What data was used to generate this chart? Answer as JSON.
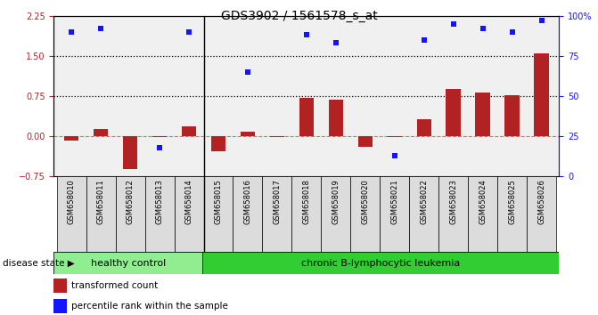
{
  "title": "GDS3902 / 1561578_s_at",
  "samples": [
    "GSM658010",
    "GSM658011",
    "GSM658012",
    "GSM658013",
    "GSM658014",
    "GSM658015",
    "GSM658016",
    "GSM658017",
    "GSM658018",
    "GSM658019",
    "GSM658020",
    "GSM658021",
    "GSM658022",
    "GSM658023",
    "GSM658024",
    "GSM658025",
    "GSM658026"
  ],
  "red_values": [
    -0.08,
    0.13,
    -0.62,
    -0.02,
    0.18,
    -0.28,
    0.08,
    -0.02,
    0.72,
    0.69,
    -0.19,
    -0.02,
    0.32,
    0.88,
    0.82,
    0.77,
    1.55
  ],
  "blue_percentiles": [
    90,
    92,
    null,
    18,
    90,
    null,
    65,
    null,
    88,
    83,
    null,
    13,
    85,
    95,
    92,
    90,
    97
  ],
  "ylim_left": [
    -0.75,
    2.25
  ],
  "ylim_right": [
    0,
    100
  ],
  "yticks_left": [
    -0.75,
    0.0,
    0.75,
    1.5,
    2.25
  ],
  "yticks_right": [
    0,
    25,
    50,
    75,
    100
  ],
  "hline_y1": 1.5,
  "hline_y2": 0.75,
  "healthy_count": 5,
  "bar_color_red": "#B22222",
  "bar_color_blue": "#1414FF",
  "healthy_color": "#90EE90",
  "leukemia_color": "#32CD32",
  "label_box_color": "#DCDCDC",
  "axis_bg": "#FFFFFF",
  "plot_bg": "#F0F0F0",
  "left_ytick_color": "#B22222",
  "right_ytick_color": "#1414FF",
  "legend_red_label": "transformed count",
  "legend_blue_label": "percentile rank within the sample",
  "disease_label_left": "healthy control",
  "disease_label_right": "chronic B-lymphocytic leukemia",
  "disease_state_label": "disease state",
  "title_fontsize": 10,
  "tick_fontsize": 7,
  "bar_width": 0.5
}
